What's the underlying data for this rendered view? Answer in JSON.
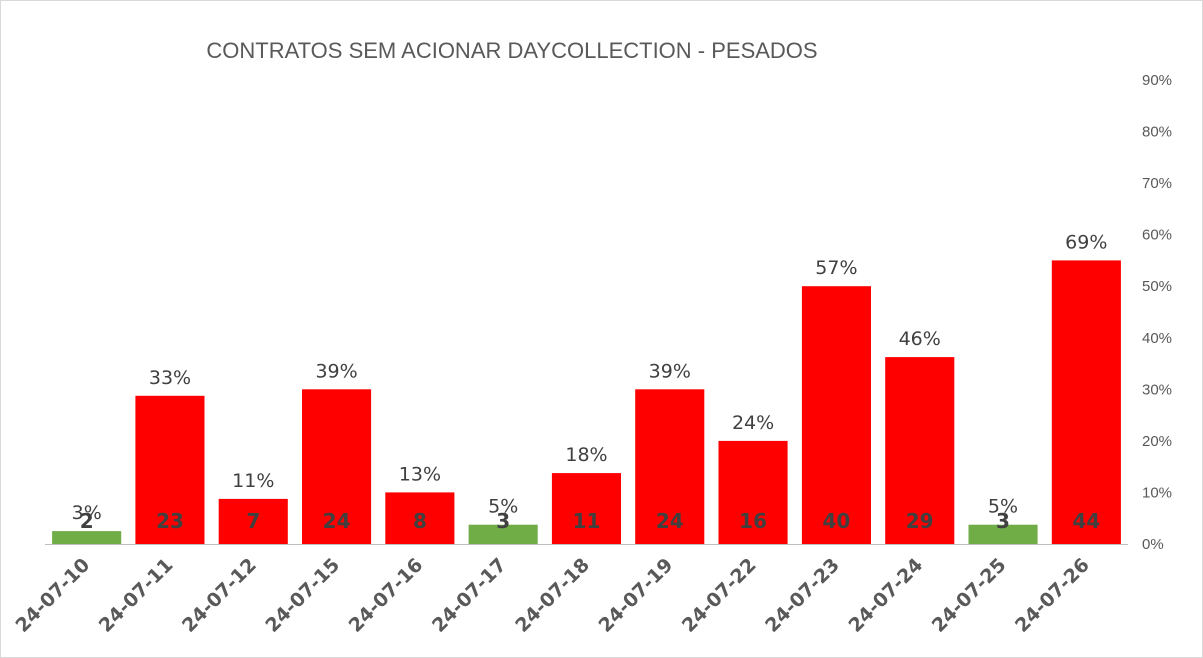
{
  "chart_data": {
    "type": "bar",
    "title": "CONTRATOS SEM ACIONAR DAYCOLLECTION - PESADOS",
    "categories": [
      "24-07-10",
      "24-07-11",
      "24-07-12",
      "24-07-15",
      "24-07-16",
      "24-07-17",
      "24-07-18",
      "24-07-19",
      "24-07-22",
      "24-07-23",
      "24-07-24",
      "24-07-25",
      "24-07-26"
    ],
    "values": [
      2,
      23,
      7,
      24,
      8,
      3,
      11,
      24,
      16,
      40,
      29,
      3,
      44
    ],
    "percent_labels": [
      "3%",
      "33%",
      "11%",
      "39%",
      "13%",
      "5%",
      "18%",
      "39%",
      "24%",
      "57%",
      "46%",
      "5%",
      "69%"
    ],
    "bar_colors": [
      "#70ad47",
      "#ff0000",
      "#ff0000",
      "#ff0000",
      "#ff0000",
      "#70ad47",
      "#ff0000",
      "#ff0000",
      "#ff0000",
      "#ff0000",
      "#ff0000",
      "#70ad47",
      "#ff0000"
    ],
    "colors": {
      "bad": "#ff0000",
      "good": "#70ad47"
    },
    "ylim": [
      0,
      70
    ],
    "y2_ticks": [
      "0%",
      "10%",
      "20%",
      "30%",
      "40%",
      "50%",
      "60%",
      "70%",
      "80%",
      "90%"
    ],
    "y2lim": [
      0,
      0.9
    ],
    "y2_axis_side": "right",
    "xlabel": "",
    "ylabel": "",
    "grid": false,
    "legend": "none"
  }
}
